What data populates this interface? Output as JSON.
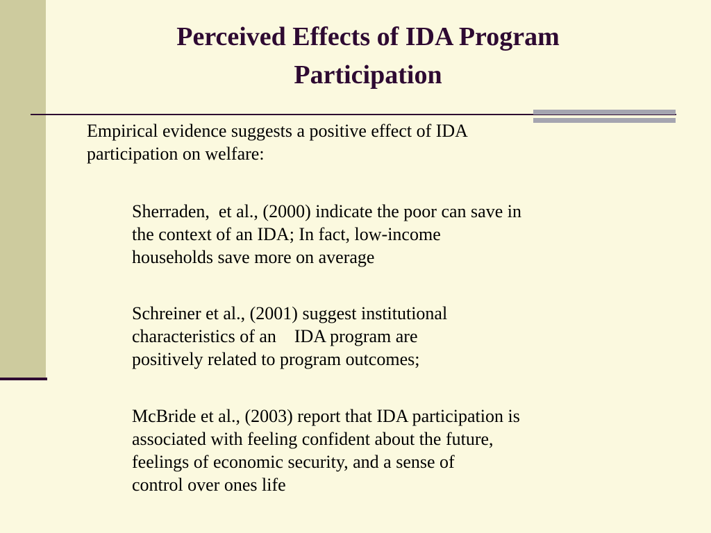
{
  "slide": {
    "title_lines": [
      "Perceived Effects of IDA Program",
      "Participation"
    ],
    "intro_lines": [
      "Empirical evidence suggests a positive effect of IDA",
      "participation on welfare:"
    ],
    "citations": [
      {
        "lines": [
          "Sherraden,  et al., (2000) indicate the poor can save in",
          "the context of an IDA; In fact, low-income",
          "households save more on average"
        ]
      },
      {
        "lines": [
          "Schreiner et al., (2001) suggest institutional",
          "characteristics of an    IDA program are",
          "positively related to program outcomes;"
        ]
      },
      {
        "lines": [
          "McBride et al., (2003) report that IDA participation is",
          "associated with feeling confident about the future,",
          "feelings of economic security, and a sense of",
          "control over ones life"
        ]
      }
    ]
  },
  "theme": {
    "background": "#FBF9DF",
    "sidebar": "#CDCB9E",
    "accent": "#2E0A32",
    "corner_bars": "#A5A5B0"
  }
}
